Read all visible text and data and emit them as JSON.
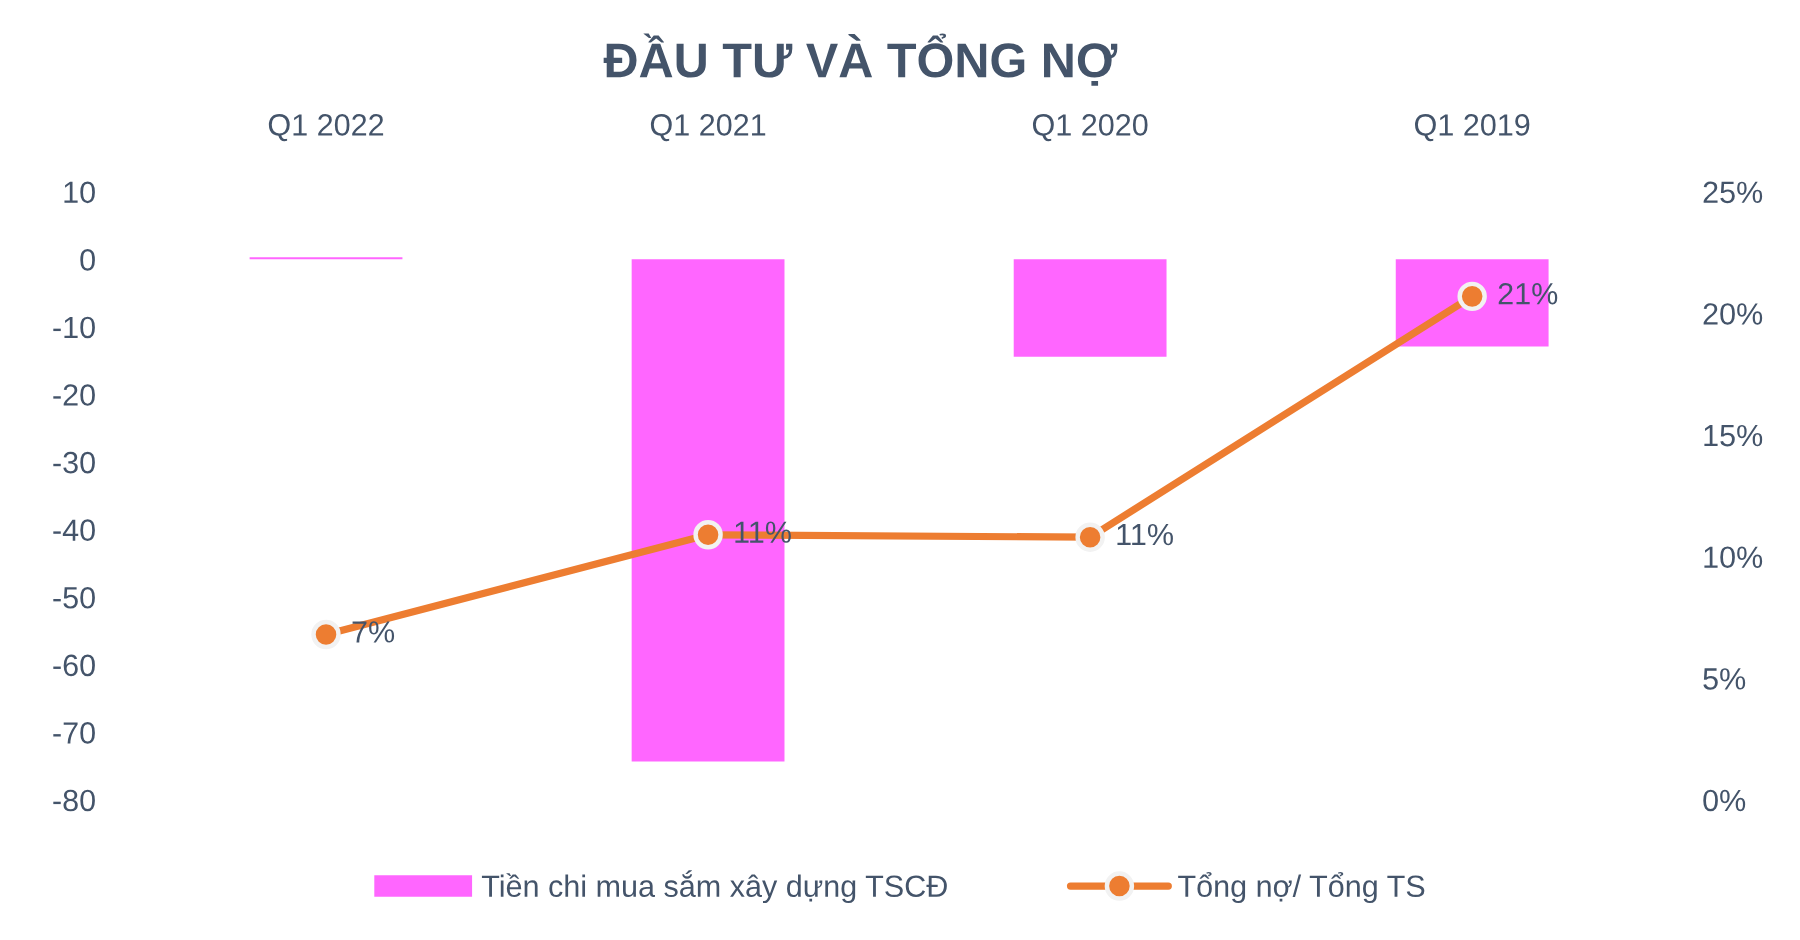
{
  "chart_data": {
    "type": "bar",
    "title": "ĐẦU TƯ VÀ TỔNG NỢ",
    "categories": [
      "Q1 2022",
      "Q1 2021",
      "Q1 2020",
      "Q1 2019"
    ],
    "series": [
      {
        "name": "Tiền chi mua sắm xây dựng TSCĐ",
        "color": "#ff66ff",
        "values": [
          0.3,
          -74.3,
          -14.4,
          -12.9
        ]
      },
      {
        "name": "Tổng nợ/ Tổng TS",
        "type": "line",
        "axis": "y2",
        "color": "#ed7d31",
        "values": [
          6.8,
          10.9,
          10.8,
          20.7
        ],
        "value_labels": [
          "7%",
          "11%",
          "11%",
          "21%"
        ]
      }
    ],
    "ylim": [
      -80,
      10
    ],
    "yticks": [
      -80,
      -70,
      -60,
      -50,
      -40,
      -30,
      -20,
      -10,
      0,
      10
    ],
    "y2lim": [
      0,
      25
    ],
    "y2ticks": [
      {
        "value": 0,
        "label": "0%"
      },
      {
        "value": 5,
        "label": "5%"
      },
      {
        "value": 10,
        "label": "10%"
      },
      {
        "value": 15,
        "label": "15%"
      },
      {
        "value": 20,
        "label": "20%"
      },
      {
        "value": 25,
        "label": "25%"
      }
    ],
    "marker": "circle",
    "line_style": "solid",
    "grid": false,
    "legend": "bottom"
  }
}
